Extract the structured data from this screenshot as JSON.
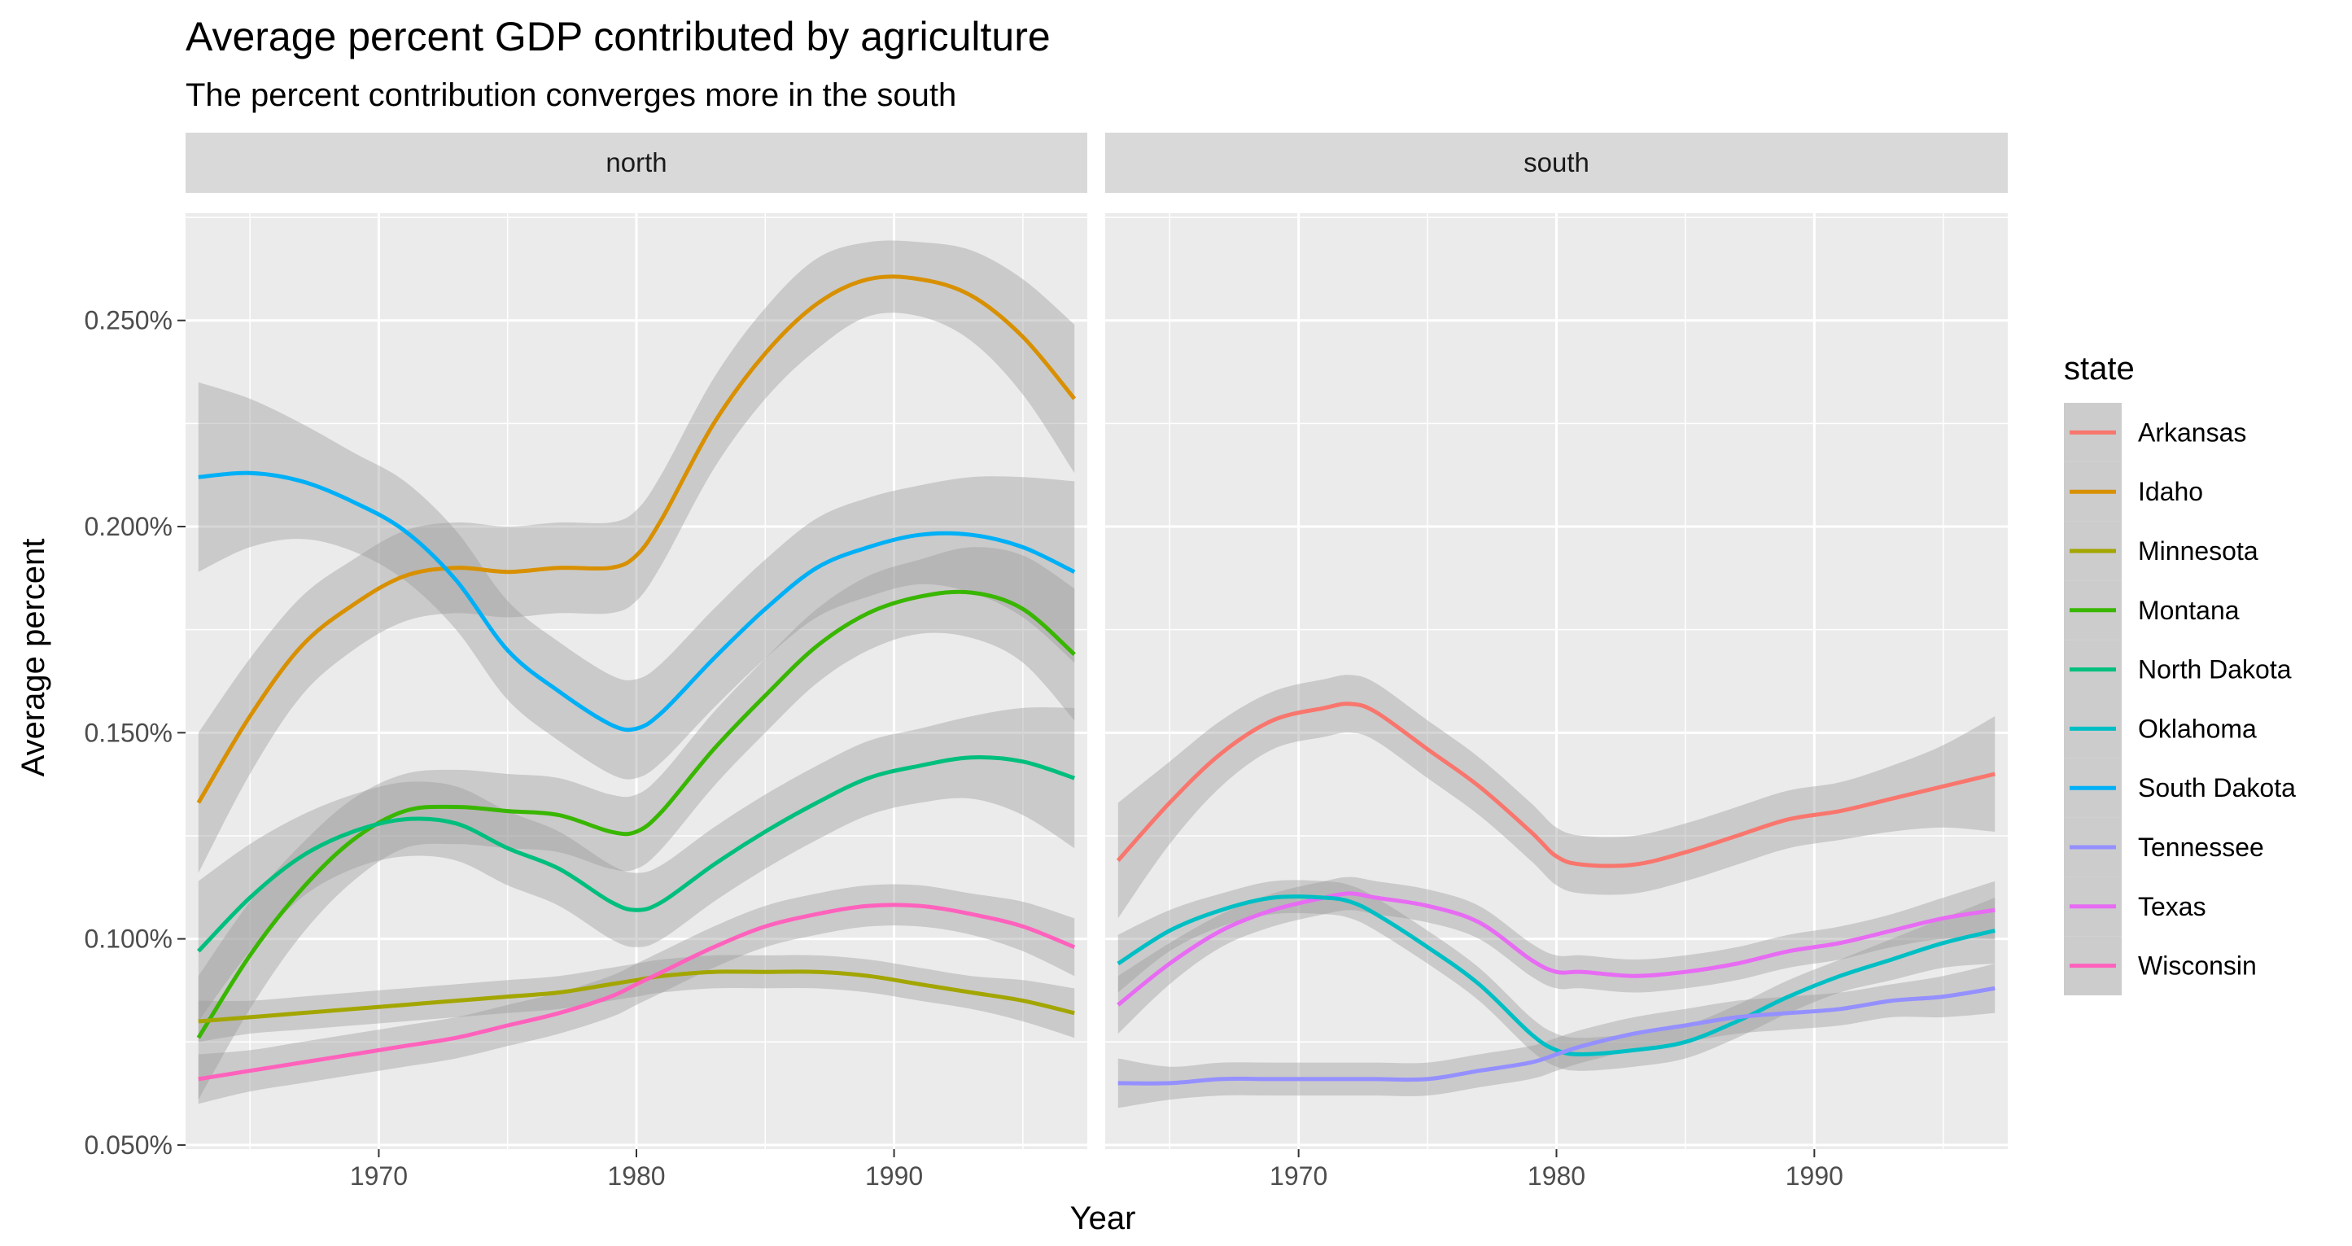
{
  "chart_data": {
    "type": "line",
    "title": "Average percent GDP contributed by agriculture",
    "subtitle": "The percent contribution converges more in the south",
    "xlabel": "Year",
    "ylabel": "Average percent",
    "xlim": [
      1962.5,
      1997.5
    ],
    "ylim": [
      0.049,
      0.276
    ],
    "x_ticks": [
      1970,
      1980,
      1990
    ],
    "x_tick_labels": [
      "1970",
      "1980",
      "1990"
    ],
    "y_ticks": [
      0.05,
      0.1,
      0.15,
      0.2,
      0.25
    ],
    "y_tick_labels": [
      "0.050%",
      "0.100%",
      "0.150%",
      "0.200%",
      "0.250%"
    ],
    "grid": true,
    "legend": {
      "title": "state",
      "position": "right"
    },
    "colors": {
      "Arkansas": "#F8766D",
      "Idaho": "#D89000",
      "Minnesota": "#A3A500",
      "Montana": "#39B600",
      "North Dakota": "#00BF7D",
      "Oklahoma": "#00BFC4",
      "South Dakota": "#00B0F6",
      "Tennessee": "#9590FF",
      "Texas": "#E76BF3",
      "Wisconsin": "#FF62BC"
    },
    "panels": [
      {
        "name": "north",
        "x": [
          1963,
          1965,
          1967,
          1969,
          1971,
          1973,
          1975,
          1977,
          1979,
          1980,
          1981,
          1983,
          1985,
          1987,
          1989,
          1991,
          1993,
          1995,
          1997
        ],
        "series": [
          {
            "name": "Idaho",
            "values": [
              0.133,
              0.154,
              0.171,
              0.181,
              0.188,
              0.19,
              0.189,
              0.19,
              0.19,
              0.193,
              0.202,
              0.225,
              0.242,
              0.254,
              0.26,
              0.26,
              0.256,
              0.246,
              0.231
            ],
            "band": [
              0.017,
              0.014,
              0.012,
              0.011,
              0.011,
              0.011,
              0.011,
              0.011,
              0.011,
              0.011,
              0.011,
              0.011,
              0.011,
              0.011,
              0.009,
              0.009,
              0.011,
              0.014,
              0.018
            ]
          },
          {
            "name": "South Dakota",
            "values": [
              0.212,
              0.213,
              0.211,
              0.206,
              0.199,
              0.187,
              0.17,
              0.16,
              0.152,
              0.151,
              0.155,
              0.168,
              0.18,
              0.19,
              0.195,
              0.198,
              0.198,
              0.195,
              0.189
            ],
            "band": [
              0.023,
              0.018,
              0.014,
              0.012,
              0.012,
              0.012,
              0.012,
              0.012,
              0.012,
              0.012,
              0.012,
              0.012,
              0.012,
              0.012,
              0.012,
              0.012,
              0.014,
              0.017,
              0.022
            ]
          },
          {
            "name": "Montana",
            "values": [
              0.076,
              0.096,
              0.112,
              0.124,
              0.131,
              0.132,
              0.131,
              0.13,
              0.126,
              0.126,
              0.131,
              0.146,
              0.159,
              0.171,
              0.179,
              0.183,
              0.184,
              0.18,
              0.169
            ],
            "band": [
              0.015,
              0.013,
              0.011,
              0.01,
              0.009,
              0.009,
              0.009,
              0.009,
              0.009,
              0.009,
              0.009,
              0.009,
              0.009,
              0.009,
              0.009,
              0.009,
              0.011,
              0.013,
              0.016
            ]
          },
          {
            "name": "North Dakota",
            "values": [
              0.097,
              0.11,
              0.12,
              0.126,
              0.129,
              0.128,
              0.122,
              0.117,
              0.109,
              0.107,
              0.109,
              0.118,
              0.126,
              0.133,
              0.139,
              0.142,
              0.144,
              0.143,
              0.139
            ],
            "band": [
              0.017,
              0.013,
              0.01,
              0.009,
              0.009,
              0.009,
              0.009,
              0.009,
              0.009,
              0.009,
              0.009,
              0.009,
              0.009,
              0.009,
              0.009,
              0.009,
              0.01,
              0.013,
              0.017
            ]
          },
          {
            "name": "Minnesota",
            "values": [
              0.08,
              0.081,
              0.082,
              0.083,
              0.084,
              0.085,
              0.086,
              0.087,
              0.089,
              0.09,
              0.091,
              0.092,
              0.092,
              0.092,
              0.091,
              0.089,
              0.087,
              0.085,
              0.082
            ],
            "band": [
              0.005,
              0.004,
              0.004,
              0.004,
              0.004,
              0.004,
              0.004,
              0.004,
              0.004,
              0.004,
              0.004,
              0.004,
              0.004,
              0.004,
              0.004,
              0.004,
              0.004,
              0.005,
              0.006
            ]
          },
          {
            "name": "Wisconsin",
            "values": [
              0.066,
              0.068,
              0.07,
              0.072,
              0.074,
              0.076,
              0.079,
              0.082,
              0.086,
              0.089,
              0.092,
              0.098,
              0.103,
              0.106,
              0.108,
              0.108,
              0.106,
              0.103,
              0.098
            ],
            "band": [
              0.006,
              0.005,
              0.005,
              0.005,
              0.005,
              0.005,
              0.005,
              0.005,
              0.005,
              0.005,
              0.005,
              0.005,
              0.005,
              0.005,
              0.005,
              0.005,
              0.005,
              0.006,
              0.007
            ]
          }
        ]
      },
      {
        "name": "south",
        "x": [
          1963,
          1965,
          1967,
          1969,
          1971,
          1972,
          1973,
          1975,
          1977,
          1979,
          1980,
          1981,
          1983,
          1985,
          1987,
          1989,
          1991,
          1993,
          1995,
          1997
        ],
        "series": [
          {
            "name": "Arkansas",
            "values": [
              0.119,
              0.133,
              0.145,
              0.153,
              0.156,
              0.157,
              0.155,
              0.146,
              0.137,
              0.126,
              0.12,
              0.118,
              0.118,
              0.121,
              0.125,
              0.129,
              0.131,
              0.134,
              0.137,
              0.14
            ],
            "band": [
              0.014,
              0.01,
              0.008,
              0.007,
              0.007,
              0.007,
              0.007,
              0.007,
              0.007,
              0.007,
              0.007,
              0.007,
              0.007,
              0.007,
              0.007,
              0.007,
              0.007,
              0.008,
              0.01,
              0.014
            ]
          },
          {
            "name": "Texas",
            "values": [
              0.084,
              0.094,
              0.102,
              0.107,
              0.11,
              0.111,
              0.11,
              0.108,
              0.104,
              0.095,
              0.092,
              0.092,
              0.091,
              0.092,
              0.094,
              0.097,
              0.099,
              0.102,
              0.105,
              0.107
            ],
            "band": [
              0.007,
              0.005,
              0.004,
              0.004,
              0.004,
              0.004,
              0.004,
              0.004,
              0.004,
              0.004,
              0.004,
              0.004,
              0.004,
              0.004,
              0.004,
              0.004,
              0.004,
              0.004,
              0.005,
              0.007
            ]
          },
          {
            "name": "Oklahoma",
            "values": [
              0.094,
              0.102,
              0.107,
              0.11,
              0.11,
              0.109,
              0.106,
              0.098,
              0.089,
              0.077,
              0.073,
              0.072,
              0.073,
              0.075,
              0.08,
              0.086,
              0.091,
              0.095,
              0.099,
              0.102
            ],
            "band": [
              0.007,
              0.005,
              0.004,
              0.004,
              0.004,
              0.004,
              0.004,
              0.004,
              0.004,
              0.004,
              0.004,
              0.004,
              0.004,
              0.004,
              0.004,
              0.004,
              0.004,
              0.005,
              0.006,
              0.008
            ]
          },
          {
            "name": "Tennessee",
            "values": [
              0.065,
              0.065,
              0.066,
              0.066,
              0.066,
              0.066,
              0.066,
              0.066,
              0.068,
              0.07,
              0.072,
              0.074,
              0.077,
              0.079,
              0.081,
              0.082,
              0.083,
              0.085,
              0.086,
              0.088
            ],
            "band": [
              0.006,
              0.004,
              0.004,
              0.004,
              0.004,
              0.004,
              0.004,
              0.004,
              0.004,
              0.004,
              0.004,
              0.004,
              0.004,
              0.004,
              0.004,
              0.004,
              0.004,
              0.004,
              0.005,
              0.006
            ]
          }
        ]
      }
    ]
  }
}
